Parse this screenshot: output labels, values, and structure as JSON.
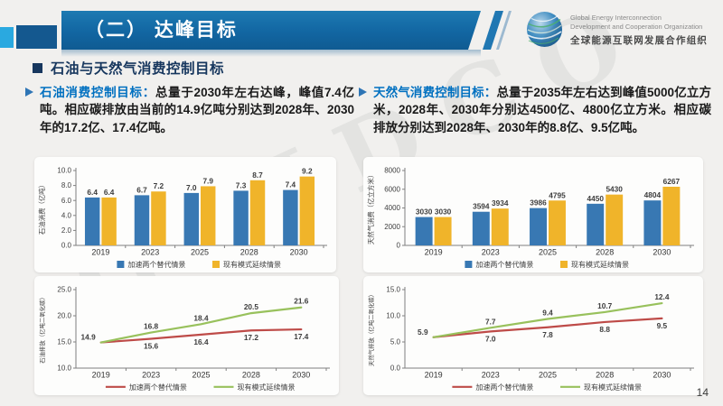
{
  "slide": {
    "title": "（二） 达峰目标",
    "page_number": "14",
    "watermark": "GEIDCO",
    "logo": {
      "line1": "Global Energy Interconnection",
      "line2": "Development and Cooperation Organization",
      "line3": "全球能源互联网发展合作组织"
    },
    "section_heading": "石油与天然气消费控制目标",
    "bullets": [
      {
        "lead": "石油消费控制目标：",
        "text": "总量于2030年左右达峰，峰值7.4亿吨。相应碳排放由当前的14.9亿吨分别达到2028年、2030年的17.2亿、17.4亿吨。"
      },
      {
        "lead": "天然气消费控制目标：",
        "text": "总量于2035年左右达到峰值5000亿立方米，2028年、2030年分别达4500亿、4800亿立方米。相应碳排放分别达到2028年、2030年的8.8亿、9.5亿吨。"
      }
    ]
  },
  "colors": {
    "title_bar_top": "#1d7ab2",
    "title_bar_bottom": "#0f5b92",
    "accent_light_blue": "#2aa9e0",
    "accent_dark_blue": "#14588f",
    "heading_navy": "#17375E",
    "lead_blue": "#0070C0",
    "bar_blue": "#3878B3",
    "bar_yellow": "#F0B42A",
    "line_red": "#BE4B48",
    "line_green": "#98C15C"
  },
  "chart_data": [
    {
      "id": "oil-consumption",
      "type": "bar",
      "ylabel": "石油消费（亿吨）",
      "categories": [
        "2019",
        "2023",
        "2025",
        "2028",
        "2030"
      ],
      "series": [
        {
          "name": "加速两个替代情景",
          "color": "#3878B3",
          "values": [
            6.4,
            6.7,
            7.0,
            7.3,
            7.4
          ]
        },
        {
          "name": "现有模式延续情景",
          "color": "#F0B42A",
          "values": [
            6.4,
            7.2,
            7.9,
            8.7,
            9.2
          ]
        }
      ],
      "ylim": [
        0,
        10
      ],
      "ytick_step": 2,
      "ytick_decimals": 1,
      "value_decimals": 1,
      "grid": false,
      "legend_position": "bottom"
    },
    {
      "id": "gas-consumption",
      "type": "bar",
      "ylabel": "天然气消费（亿立方米）",
      "categories": [
        "2019",
        "2023",
        "2025",
        "2028",
        "2030"
      ],
      "series": [
        {
          "name": "加速两个替代情景",
          "color": "#3878B3",
          "values": [
            3030,
            3594,
            3986,
            4450,
            4804
          ]
        },
        {
          "name": "现有模式延续情景",
          "color": "#F0B42A",
          "values": [
            3030,
            3934,
            4795,
            5430,
            6267
          ]
        }
      ],
      "ylim": [
        0,
        8000
      ],
      "ytick_step": 2000,
      "ytick_decimals": 0,
      "value_decimals": 0,
      "grid": false,
      "legend_position": "bottom"
    },
    {
      "id": "oil-emissions",
      "type": "line",
      "ylabel": "石油排放（亿吨二氧化碳）",
      "categories": [
        "2019",
        "2023",
        "2025",
        "2028",
        "2030"
      ],
      "series": [
        {
          "name": "加速两个替代情景",
          "color": "#BE4B48",
          "label_side": "below",
          "values": [
            14.9,
            15.6,
            16.4,
            17.2,
            17.4
          ]
        },
        {
          "name": "现有模式延续情景",
          "color": "#98C15C",
          "label_side": "above",
          "values": [
            14.9,
            16.8,
            18.4,
            20.5,
            21.6
          ]
        }
      ],
      "ylim": [
        10,
        25
      ],
      "ytick_step": 5,
      "ytick_decimals": 1,
      "value_decimals": 1,
      "grid": false,
      "legend_position": "bottom"
    },
    {
      "id": "gas-emissions",
      "type": "line",
      "ylabel": "天然气排放（亿吨二氧化碳）",
      "categories": [
        "2019",
        "2023",
        "2025",
        "2028",
        "2030"
      ],
      "series": [
        {
          "name": "加速两个替代情景",
          "color": "#BE4B48",
          "label_side": "below",
          "values": [
            5.9,
            7.0,
            7.8,
            8.8,
            9.5
          ]
        },
        {
          "name": "现有模式延续情景",
          "color": "#98C15C",
          "label_side": "above",
          "values": [
            5.9,
            7.7,
            9.4,
            10.7,
            12.4
          ]
        }
      ],
      "ylim": [
        0,
        15
      ],
      "ytick_step": 5,
      "ytick_decimals": 1,
      "value_decimals": 1,
      "grid": false,
      "legend_position": "bottom"
    }
  ]
}
